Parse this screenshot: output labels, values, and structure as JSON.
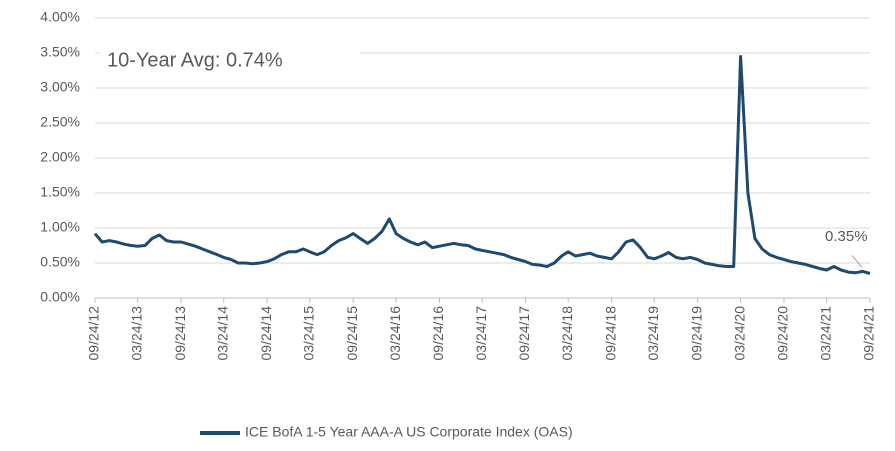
{
  "chart_data": {
    "type": "line",
    "annotations": [
      "10-Year Avg:  0.74%",
      "0.35%"
    ],
    "x": [
      "2012-09-24",
      "2012-10-24",
      "2012-11-24",
      "2012-12-24",
      "2013-01-24",
      "2013-02-24",
      "2013-03-24",
      "2013-04-24",
      "2013-05-24",
      "2013-06-24",
      "2013-07-24",
      "2013-08-24",
      "2013-09-24",
      "2013-10-24",
      "2013-11-24",
      "2013-12-24",
      "2014-01-24",
      "2014-02-24",
      "2014-03-24",
      "2014-04-24",
      "2014-05-24",
      "2014-06-24",
      "2014-07-24",
      "2014-08-24",
      "2014-09-24",
      "2014-10-24",
      "2014-11-24",
      "2014-12-24",
      "2015-01-24",
      "2015-02-24",
      "2015-03-24",
      "2015-04-24",
      "2015-05-24",
      "2015-06-24",
      "2015-07-24",
      "2015-08-24",
      "2015-09-24",
      "2015-10-24",
      "2015-11-24",
      "2015-12-24",
      "2016-01-24",
      "2016-02-24",
      "2016-03-24",
      "2016-04-24",
      "2016-05-24",
      "2016-06-24",
      "2016-07-24",
      "2016-08-24",
      "2016-09-24",
      "2016-10-24",
      "2016-11-24",
      "2016-12-24",
      "2017-01-24",
      "2017-02-24",
      "2017-03-24",
      "2017-04-24",
      "2017-05-24",
      "2017-06-24",
      "2017-07-24",
      "2017-08-24",
      "2017-09-24",
      "2017-10-24",
      "2017-11-24",
      "2017-12-24",
      "2018-01-24",
      "2018-02-24",
      "2018-03-24",
      "2018-04-24",
      "2018-05-24",
      "2018-06-24",
      "2018-07-24",
      "2018-08-24",
      "2018-09-24",
      "2018-10-24",
      "2018-11-24",
      "2018-12-24",
      "2019-01-24",
      "2019-02-24",
      "2019-03-24",
      "2019-04-24",
      "2019-05-24",
      "2019-06-24",
      "2019-07-24",
      "2019-08-24",
      "2019-09-24",
      "2019-10-24",
      "2019-11-24",
      "2019-12-24",
      "2020-01-24",
      "2020-02-24",
      "2020-03-24",
      "2020-04-24",
      "2020-05-24",
      "2020-06-24",
      "2020-07-24",
      "2020-08-24",
      "2020-09-24",
      "2020-10-24",
      "2020-11-24",
      "2020-12-24",
      "2021-01-24",
      "2021-02-24",
      "2021-03-24",
      "2021-04-24",
      "2021-05-24",
      "2021-06-24",
      "2021-07-24",
      "2021-08-24",
      "2021-09-24"
    ],
    "series": [
      {
        "name": "ICE BofA 1-5 Year AAA-A US Corporate Index (OAS)",
        "color": "#1f4a70",
        "values": [
          0.92,
          0.8,
          0.82,
          0.8,
          0.77,
          0.75,
          0.74,
          0.75,
          0.85,
          0.9,
          0.82,
          0.8,
          0.8,
          0.77,
          0.74,
          0.7,
          0.66,
          0.62,
          0.58,
          0.55,
          0.5,
          0.5,
          0.49,
          0.5,
          0.52,
          0.56,
          0.62,
          0.66,
          0.66,
          0.7,
          0.66,
          0.62,
          0.66,
          0.75,
          0.82,
          0.86,
          0.92,
          0.85,
          0.78,
          0.85,
          0.95,
          1.13,
          0.92,
          0.85,
          0.8,
          0.76,
          0.8,
          0.72,
          0.74,
          0.76,
          0.78,
          0.76,
          0.75,
          0.7,
          0.68,
          0.66,
          0.64,
          0.62,
          0.58,
          0.55,
          0.52,
          0.48,
          0.47,
          0.45,
          0.5,
          0.6,
          0.66,
          0.6,
          0.62,
          0.64,
          0.6,
          0.58,
          0.56,
          0.66,
          0.8,
          0.83,
          0.72,
          0.58,
          0.56,
          0.6,
          0.65,
          0.58,
          0.56,
          0.58,
          0.55,
          0.5,
          0.48,
          0.46,
          0.45,
          0.45,
          3.45,
          1.5,
          0.85,
          0.7,
          0.62,
          0.58,
          0.55,
          0.52,
          0.5,
          0.48,
          0.45,
          0.42,
          0.4,
          0.45,
          0.4,
          0.37,
          0.36,
          0.38,
          0.35
        ]
      }
    ],
    "xlim": [
      "2012-09-24",
      "2021-09-24"
    ],
    "xticks": [
      {
        "value": "2012-09-24",
        "label": "09/24/12"
      },
      {
        "value": "2013-03-24",
        "label": "03/24/13"
      },
      {
        "value": "2013-09-24",
        "label": "09/24/13"
      },
      {
        "value": "2014-03-24",
        "label": "03/24/14"
      },
      {
        "value": "2014-09-24",
        "label": "09/24/14"
      },
      {
        "value": "2015-03-24",
        "label": "03/24/15"
      },
      {
        "value": "2015-09-24",
        "label": "09/24/15"
      },
      {
        "value": "2016-03-24",
        "label": "03/24/16"
      },
      {
        "value": "2016-09-24",
        "label": "09/24/16"
      },
      {
        "value": "2017-03-24",
        "label": "03/24/17"
      },
      {
        "value": "2017-09-24",
        "label": "09/24/17"
      },
      {
        "value": "2018-03-24",
        "label": "03/24/18"
      },
      {
        "value": "2018-09-24",
        "label": "09/24/18"
      },
      {
        "value": "2019-03-24",
        "label": "03/24/19"
      },
      {
        "value": "2019-09-24",
        "label": "09/24/19"
      },
      {
        "value": "2020-03-24",
        "label": "03/24/20"
      },
      {
        "value": "2020-09-24",
        "label": "09/24/20"
      },
      {
        "value": "2021-03-24",
        "label": "03/24/21"
      },
      {
        "value": "2021-09-24",
        "label": "09/24/21"
      }
    ],
    "ylim": [
      0,
      4
    ],
    "yticks": [
      {
        "value": 0,
        "label": "0.00%"
      },
      {
        "value": 0.5,
        "label": "0.50%"
      },
      {
        "value": 1,
        "label": "1.00%"
      },
      {
        "value": 1.5,
        "label": "1.50%"
      },
      {
        "value": 2,
        "label": "2.00%"
      },
      {
        "value": 2.5,
        "label": "2.50%"
      },
      {
        "value": 3,
        "label": "3.00%"
      },
      {
        "value": 3.5,
        "label": "3.50%"
      },
      {
        "value": 4,
        "label": "4.00%"
      }
    ],
    "grid": true,
    "legend": "bottom"
  }
}
